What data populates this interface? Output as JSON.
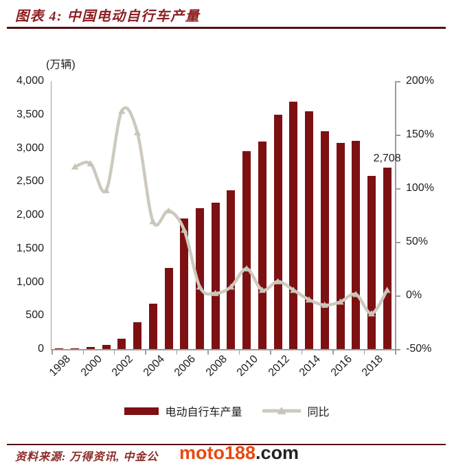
{
  "header": {
    "title": "图表 4: 中国电动自行车产量"
  },
  "chart_data": {
    "type": "bar+line",
    "title": "中国电动自行车产量",
    "unit_label": "(万辆)",
    "categories": [
      "1998",
      "1999",
      "2000",
      "2001",
      "2002",
      "2003",
      "2004",
      "2005",
      "2006",
      "2007",
      "2008",
      "2009",
      "2010",
      "2011",
      "2012",
      "2013",
      "2014",
      "2015",
      "2016",
      "2017",
      "2018",
      "2019"
    ],
    "series": [
      {
        "name": "电动自行车产量",
        "type": "bar",
        "axis": "left",
        "unit": "万辆",
        "values": [
          6,
          13,
          29,
          59,
          158,
          400,
          676,
          1211,
          1950,
          2100,
          2180,
          2370,
          2950,
          3100,
          3500,
          3690,
          3550,
          3250,
          3080,
          3110,
          2590,
          2708
        ]
      },
      {
        "name": "同比",
        "type": "line",
        "axis": "right",
        "unit": "%",
        "values": [
          null,
          120,
          123,
          98,
          172,
          152,
          69,
          79,
          61,
          8,
          2,
          8,
          25,
          5,
          13,
          5,
          -4,
          -9,
          -6,
          1,
          -17,
          5
        ]
      }
    ],
    "y_left": {
      "min": 0,
      "max": 4000,
      "ticks": [
        "4,000",
        "3,500",
        "3,000",
        "2,500",
        "2,000",
        "1,500",
        "1,000",
        "500",
        "0"
      ]
    },
    "y_right": {
      "min": -50,
      "max": 200,
      "ticks": [
        "200%",
        "150%",
        "100%",
        "50%",
        "0%",
        "-50%"
      ]
    },
    "x_ticks": [
      "1998",
      "2000",
      "2002",
      "2004",
      "2006",
      "2008",
      "2010",
      "2012",
      "2014",
      "2016",
      "2018"
    ],
    "annotation": {
      "text": "2,708",
      "category": "2019"
    },
    "legend": [
      {
        "label": "电动自行车产量",
        "marker": "bar"
      },
      {
        "label": "同比",
        "marker": "line-triangle"
      }
    ],
    "grid": false,
    "legend_position": "bottom-center"
  },
  "footer": {
    "source_text": "资料来源: 万得资讯, 中金公",
    "watermark_brand": "moto188",
    "watermark_tld": ".com"
  },
  "colors": {
    "bar": "#7d1013",
    "line": "#cdc9bd",
    "title_red": "#8c1e22",
    "rule_red": "#541011",
    "axis_gray": "#9c9c9c",
    "text": "#1c1c1c",
    "watermark_orange": "#e8480f",
    "watermark_dark": "#222222",
    "background": "#ffffff"
  }
}
